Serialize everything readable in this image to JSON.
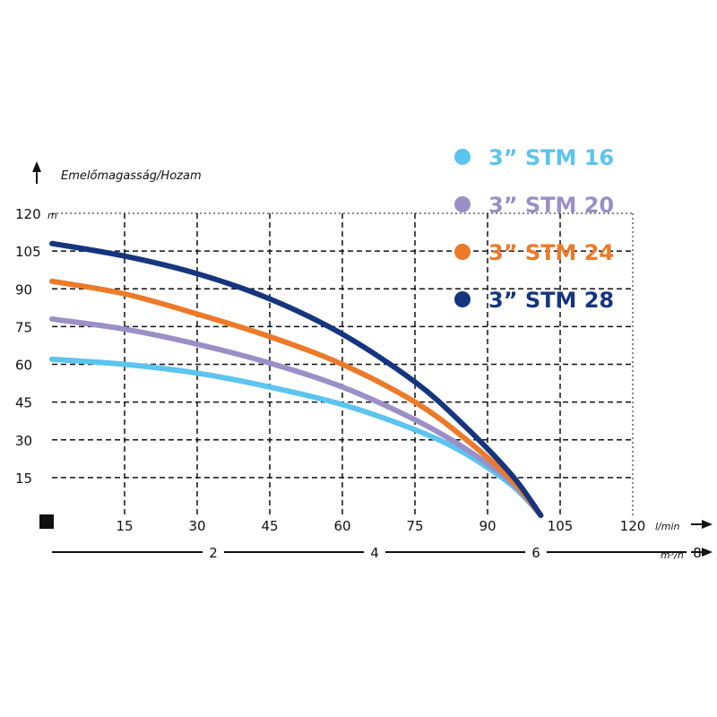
{
  "chart_data": {
    "type": "line",
    "ylabel": "Emelőmagasság/Hozam",
    "y_unit": "m",
    "x_unit": "l/min",
    "x2_unit": "m³/h",
    "xlim": [
      0,
      120
    ],
    "ylim": [
      0,
      120
    ],
    "x_ticks": [
      "15",
      "30",
      "45",
      "60",
      "75",
      "90",
      "105",
      "120"
    ],
    "y_ticks": [
      "120",
      "105",
      "90",
      "75",
      "60",
      "45",
      "30",
      "15"
    ],
    "x2_ticks": [
      "2",
      "4",
      "6",
      "8"
    ],
    "grid": true,
    "legend_position": "top-right",
    "series": [
      {
        "name": "3” STM 16",
        "color": "#5bc4ef",
        "x": [
          0,
          15,
          30,
          45,
          60,
          75,
          85,
          95,
          101
        ],
        "y": [
          62,
          60,
          56.5,
          51,
          44,
          34,
          25,
          12,
          0
        ]
      },
      {
        "name": "3” STM 20",
        "color": "#9a8fc6",
        "x": [
          0,
          15,
          30,
          45,
          60,
          75,
          85,
          95,
          101
        ],
        "y": [
          78,
          74,
          68,
          60.5,
          51,
          38,
          27,
          13,
          0
        ]
      },
      {
        "name": "3” STM 24",
        "color": "#ec7a29",
        "x": [
          0,
          15,
          30,
          45,
          60,
          75,
          85,
          95,
          101
        ],
        "y": [
          93,
          88,
          80,
          71,
          60,
          45,
          31,
          14,
          0
        ]
      },
      {
        "name": "3” STM 28",
        "color": "#16357f",
        "x": [
          0,
          15,
          30,
          45,
          60,
          75,
          85,
          95,
          101
        ],
        "y": [
          108,
          103,
          96,
          86,
          72,
          53,
          36,
          16,
          0
        ]
      }
    ]
  }
}
